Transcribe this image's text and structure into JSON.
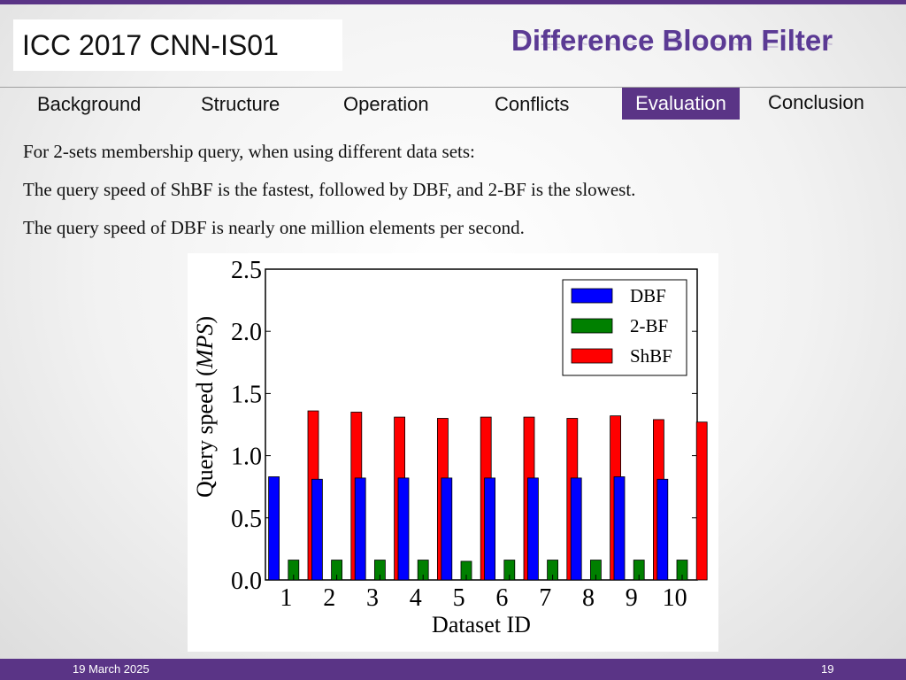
{
  "header": {
    "conference": "ICC 2017  CNN-IS01",
    "title": "Difference Bloom Filter"
  },
  "nav": {
    "items": [
      "Background",
      "Structure",
      "Operation",
      "Conflicts",
      "Evaluation",
      "Conclusion"
    ],
    "active": "Evaluation"
  },
  "body": {
    "lines": [
      "For 2-sets membership query, when using different data sets:",
      "The query speed of ShBF is the fastest, followed by DBF, and 2-BF is the slowest.",
      "The query speed of DBF is nearly one million elements per second."
    ]
  },
  "footer": {
    "date": "19 March 2025",
    "page": "19"
  },
  "colors": {
    "accent": "#5a3486",
    "title": "#5b3a94"
  },
  "chart_data": {
    "type": "bar",
    "xlabel": "Dataset ID",
    "ylabel_prefix": "Query speed (",
    "ylabel_unit": "MPS",
    "ylabel_suffix": ")",
    "ylim": [
      0,
      2.5
    ],
    "yticks": [
      "0.0",
      "0.5",
      "1.0",
      "1.5",
      "2.0",
      "2.5"
    ],
    "categories": [
      "1",
      "2",
      "3",
      "4",
      "5",
      "6",
      "7",
      "8",
      "9",
      "10"
    ],
    "legend_position": "top-right",
    "grid": false,
    "series": [
      {
        "name": "DBF",
        "color": "#0000ff",
        "values": [
          0.83,
          0.81,
          0.82,
          0.82,
          0.82,
          0.82,
          0.82,
          0.82,
          0.83,
          0.81
        ]
      },
      {
        "name": "2-BF",
        "color": "#008000",
        "values": [
          0.16,
          0.16,
          0.16,
          0.16,
          0.15,
          0.16,
          0.16,
          0.16,
          0.16,
          0.16
        ]
      },
      {
        "name": "ShBF",
        "color": "#ff0000",
        "values": [
          1.36,
          1.35,
          1.31,
          1.3,
          1.31,
          1.31,
          1.3,
          1.32,
          1.29,
          1.27
        ]
      }
    ]
  }
}
